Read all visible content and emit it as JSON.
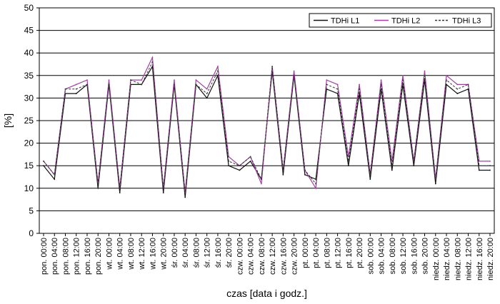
{
  "chart_data": {
    "type": "line",
    "xlabel": "czas [data i godz.]",
    "ylabel": "[%]",
    "ylim": [
      0,
      50
    ],
    "yticks": [
      0,
      5,
      10,
      15,
      20,
      25,
      30,
      35,
      40,
      45,
      50
    ],
    "grid": "horizontal",
    "legend_position": "top-right",
    "colors": {
      "L1": "#111111",
      "L2": "#a040a0",
      "L3": "#333333"
    },
    "x": [
      "pon. 00:00",
      "pon. 04:00",
      "pon. 08:00",
      "pon. 12:00",
      "pon. 16:00",
      "pon. 20:00",
      "wt. 00:00",
      "wt. 04:00",
      "wt. 08:00",
      "wt. 12:00",
      "wt. 16:00",
      "wt. 20:00",
      "śr. 00:00",
      "śr. 04:00",
      "śr. 08:00",
      "śr. 12:00",
      "śr. 16:00",
      "śr. 20:00",
      "czw. 00:00",
      "czw. 04:00",
      "czw. 08:00",
      "czw. 12:00",
      "czw. 16:00",
      "czw. 20:00",
      "pt. 00:00",
      "pt. 04:00",
      "pt. 08:00",
      "pt. 12:00",
      "pt. 16:00",
      "pt. 20:00",
      "sob. 00:00",
      "sob. 04:00",
      "sob. 08:00",
      "sob. 12:00",
      "sob. 16:00",
      "sob. 20:00",
      "niedz. 00:00",
      "niedz. 04:00",
      "niedz. 08:00",
      "niedz. 12:00",
      "niedz. 16:00",
      "niedz. 20:00"
    ],
    "series": [
      {
        "name": "TDHi L1",
        "values": [
          15,
          12,
          31,
          31,
          33,
          10,
          33,
          9,
          33,
          33,
          37,
          9,
          33,
          8,
          33,
          30,
          35,
          15,
          14,
          16,
          12,
          36,
          13,
          35,
          13,
          12,
          32,
          31,
          15,
          31,
          12,
          32,
          14,
          33,
          15,
          34,
          11,
          33,
          31,
          32,
          14,
          14
        ]
      },
      {
        "name": "TDHi L2",
        "values": [
          16,
          13,
          32,
          33,
          34,
          11,
          34,
          10,
          34,
          34,
          39,
          10,
          34,
          9,
          34,
          32,
          37,
          17,
          15,
          17,
          11,
          37,
          14,
          36,
          14,
          10,
          34,
          33,
          17,
          33,
          13,
          34,
          16,
          35,
          16,
          36,
          12,
          35,
          33,
          33,
          16,
          16
        ]
      },
      {
        "name": "TDHi L3",
        "values": [
          16,
          13,
          32,
          32,
          33,
          11,
          33,
          10,
          34,
          33,
          38,
          10,
          33,
          9,
          33,
          31,
          36,
          16,
          15,
          17,
          12,
          37,
          14,
          35,
          14,
          11,
          33,
          32,
          16,
          32,
          13,
          33,
          15,
          34,
          16,
          35,
          12,
          34,
          32,
          33,
          15,
          15
        ]
      }
    ]
  }
}
